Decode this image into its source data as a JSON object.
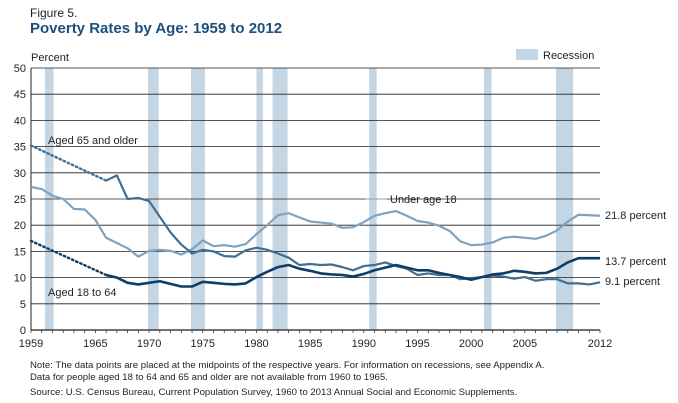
{
  "figure_label": "Figure 5.",
  "title": "Poverty Rates by Age: 1959 to 2012",
  "note": "Note: The data points are placed at the midpoints of the respective years. For information on recessions, see Appendix A.",
  "note2": "Data for people aged 18 to 64 and 65 and older are not available from 1960 to 1965.",
  "source": "Source: U.S. Census Bureau, Current Population Survey, 1960 to 2013 Annual Social and Economic Supplements.",
  "colors": {
    "under18": "#7fa2bf",
    "aged65": "#3f6f94",
    "aged18_64": "#0f3d66",
    "recession": "#c4d6e4",
    "axis": "#231f20",
    "grid": "#231f20"
  },
  "chart_data": {
    "type": "line",
    "ylabel": "Percent",
    "ylim": [
      0,
      50
    ],
    "yticks": [
      0,
      5,
      10,
      15,
      20,
      25,
      30,
      35,
      40,
      45,
      50
    ],
    "xlim": [
      1959,
      2012
    ],
    "xticks": [
      1959,
      1965,
      1970,
      1975,
      1980,
      1985,
      1990,
      1995,
      2000,
      2005,
      2012
    ],
    "grid": true,
    "legend": {
      "label": "Recession",
      "placement": "top-right"
    },
    "recessions": [
      [
        1960.3,
        1961.1
      ],
      [
        1969.9,
        1970.9
      ],
      [
        1973.9,
        1975.2
      ],
      [
        1980.0,
        1980.6
      ],
      [
        1981.5,
        1982.9
      ],
      [
        1990.5,
        1991.2
      ],
      [
        2001.2,
        2001.9
      ],
      [
        2007.9,
        2009.5
      ]
    ],
    "series": [
      {
        "name": "Under age 18",
        "annotation": "Under age 18",
        "end_label": "21.8 percent",
        "x": [
          1959,
          1960,
          1961,
          1962,
          1963,
          1964,
          1965,
          1966,
          1967,
          1968,
          1969,
          1970,
          1971,
          1972,
          1973,
          1974,
          1975,
          1976,
          1977,
          1978,
          1979,
          1980,
          1981,
          1982,
          1983,
          1984,
          1985,
          1986,
          1987,
          1988,
          1989,
          1990,
          1991,
          1992,
          1993,
          1994,
          1995,
          1996,
          1997,
          1998,
          1999,
          2000,
          2001,
          2002,
          2003,
          2004,
          2005,
          2006,
          2007,
          2008,
          2009,
          2010,
          2011,
          2012
        ],
        "values": [
          27.3,
          26.9,
          25.6,
          25.0,
          23.1,
          23.0,
          21.0,
          17.6,
          16.6,
          15.6,
          14.0,
          15.1,
          15.3,
          15.1,
          14.4,
          15.4,
          17.1,
          16.0,
          16.2,
          15.9,
          16.4,
          18.3,
          20.0,
          21.9,
          22.3,
          21.5,
          20.7,
          20.5,
          20.3,
          19.5,
          19.6,
          20.6,
          21.8,
          22.3,
          22.7,
          21.8,
          20.8,
          20.5,
          19.9,
          18.9,
          16.9,
          16.2,
          16.3,
          16.7,
          17.6,
          17.8,
          17.6,
          17.4,
          18.0,
          19.0,
          20.7,
          22.0,
          21.9,
          21.8
        ]
      },
      {
        "name": "Aged 65 and older",
        "annotation": "Aged 65 and older",
        "end_label": "9.1 percent",
        "dotted_x": [
          1959,
          1966
        ],
        "dotted_values": [
          35.2,
          28.5
        ],
        "x": [
          1966,
          1967,
          1968,
          1969,
          1970,
          1971,
          1972,
          1973,
          1974,
          1975,
          1976,
          1977,
          1978,
          1979,
          1980,
          1981,
          1982,
          1983,
          1984,
          1985,
          1986,
          1987,
          1988,
          1989,
          1990,
          1991,
          1992,
          1993,
          1994,
          1995,
          1996,
          1997,
          1998,
          1999,
          2000,
          2001,
          2002,
          2003,
          2004,
          2005,
          2006,
          2007,
          2008,
          2009,
          2010,
          2011,
          2012
        ],
        "values": [
          28.5,
          29.5,
          25.0,
          25.2,
          24.6,
          21.6,
          18.6,
          16.3,
          14.6,
          15.3,
          15.0,
          14.1,
          14.0,
          15.2,
          15.7,
          15.3,
          14.6,
          13.8,
          12.4,
          12.6,
          12.4,
          12.5,
          12.0,
          11.4,
          12.2,
          12.4,
          12.9,
          12.2,
          11.7,
          10.5,
          10.8,
          10.5,
          10.5,
          9.7,
          9.9,
          10.1,
          10.4,
          10.2,
          9.8,
          10.1,
          9.4,
          9.7,
          9.7,
          8.9,
          8.9,
          8.7,
          9.1
        ]
      },
      {
        "name": "Aged 18 to 64",
        "annotation": "Aged 18 to 64",
        "end_label": "13.7 percent",
        "dotted_x": [
          1959,
          1966
        ],
        "dotted_values": [
          17.0,
          10.5
        ],
        "x": [
          1966,
          1967,
          1968,
          1969,
          1970,
          1971,
          1972,
          1973,
          1974,
          1975,
          1976,
          1977,
          1978,
          1979,
          1980,
          1981,
          1982,
          1983,
          1984,
          1985,
          1986,
          1987,
          1988,
          1989,
          1990,
          1991,
          1992,
          1993,
          1994,
          1995,
          1996,
          1997,
          1998,
          1999,
          2000,
          2001,
          2002,
          2003,
          2004,
          2005,
          2006,
          2007,
          2008,
          2009,
          2010,
          2011,
          2012
        ],
        "values": [
          10.5,
          10.0,
          9.0,
          8.7,
          9.0,
          9.3,
          8.8,
          8.3,
          8.3,
          9.2,
          9.0,
          8.8,
          8.7,
          8.9,
          10.1,
          11.1,
          12.0,
          12.4,
          11.7,
          11.3,
          10.8,
          10.6,
          10.5,
          10.2,
          10.7,
          11.4,
          11.9,
          12.4,
          11.9,
          11.4,
          11.4,
          10.9,
          10.5,
          10.1,
          9.6,
          10.1,
          10.6,
          10.8,
          11.3,
          11.1,
          10.8,
          10.9,
          11.7,
          12.9,
          13.7,
          13.7,
          13.7
        ]
      }
    ]
  }
}
